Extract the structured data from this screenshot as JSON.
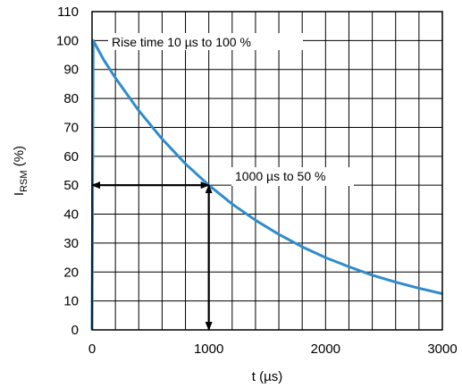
{
  "chart_data": {
    "type": "line",
    "title": "",
    "xlabel": "t (µs)",
    "ylabel_main": "I",
    "ylabel_sub": "RSM",
    "ylabel_unit": " (%)",
    "xlim": [
      0,
      3000
    ],
    "ylim": [
      0,
      110
    ],
    "x_ticks": [
      0,
      1000,
      2000,
      3000
    ],
    "x_minor_step": 200,
    "y_ticks": [
      0,
      10,
      20,
      30,
      40,
      50,
      60,
      70,
      80,
      90,
      100,
      110
    ],
    "grid": true,
    "series": [
      {
        "color": "#2f8ccc",
        "x": [
          0,
          10,
          100,
          200,
          400,
          600,
          800,
          1000,
          1200,
          1400,
          1600,
          1800,
          2000,
          2200,
          2400,
          2600,
          2800,
          3000
        ],
        "y": [
          0,
          100,
          93.3,
          87.1,
          75.8,
          66.0,
          57.4,
          50.0,
          43.5,
          37.9,
          33.0,
          28.7,
          25.0,
          21.8,
          18.9,
          16.5,
          14.4,
          12.5
        ]
      }
    ],
    "annotations": [
      {
        "text": "Rise time 10 µs to 100 %",
        "at": [
          10,
          100
        ]
      },
      {
        "text": "1000 µs to 50 %",
        "at": [
          1000,
          50
        ]
      }
    ],
    "arrows": [
      {
        "from": [
          1000,
          50
        ],
        "to": [
          0,
          50
        ]
      },
      {
        "from": [
          0,
          50
        ],
        "to": [
          1000,
          50
        ]
      },
      {
        "from": [
          1000,
          50
        ],
        "to": [
          1000,
          0
        ]
      },
      {
        "from": [
          1000,
          0
        ],
        "to": [
          1000,
          50
        ]
      }
    ]
  }
}
